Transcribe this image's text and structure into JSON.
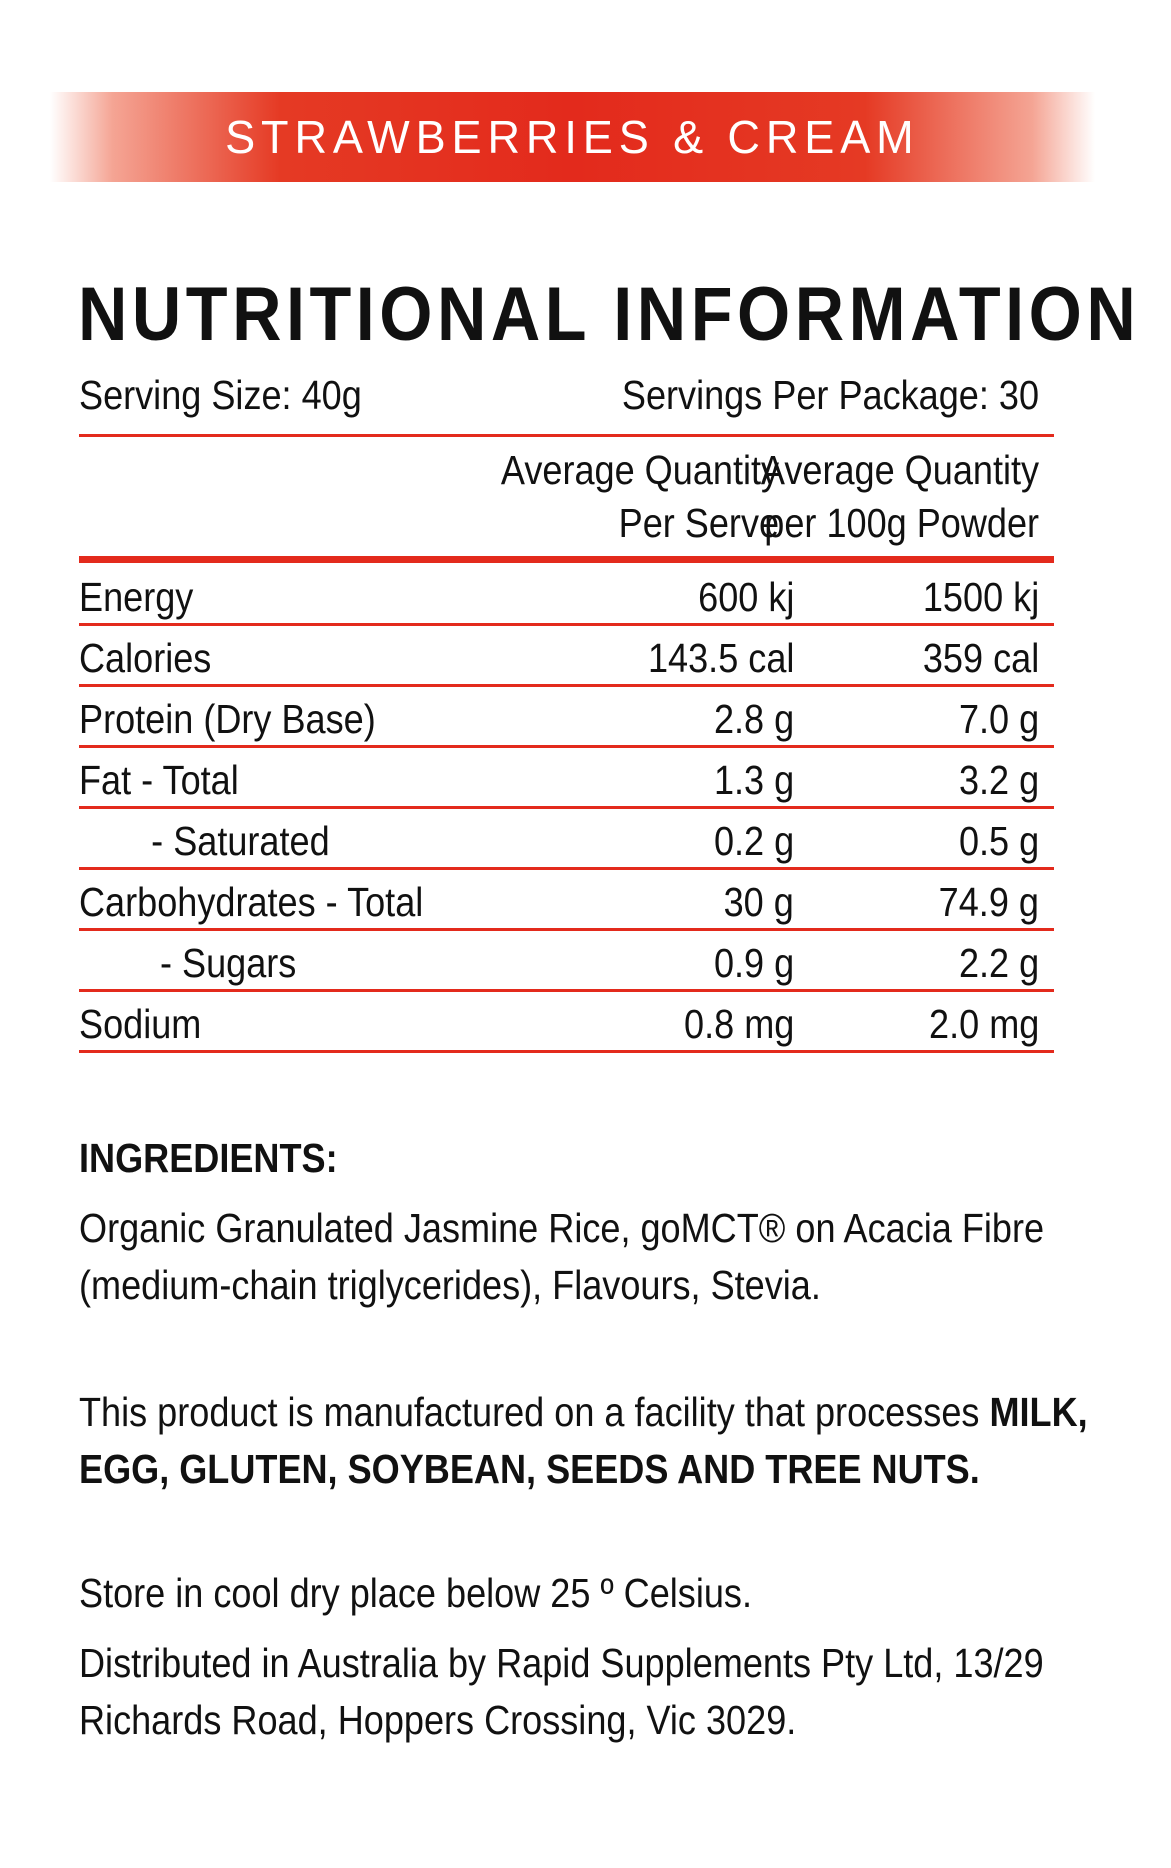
{
  "banner": {
    "flavour": "STRAWBERRIES & CREAM"
  },
  "panel": {
    "title": "NUTRITIONAL INFORMATION",
    "serving_size": "Serving Size: 40g",
    "servings_per_package": "Servings Per Package: 30",
    "columns": {
      "per_serve_line1": "Average Quantity",
      "per_serve_line2": "Per Serve",
      "per_100g_line1": "Average Quantity",
      "per_100g_line2": "per 100g Powder"
    },
    "rows": [
      {
        "label": "Energy",
        "per_serve": "600 kj",
        "per_100g": "1500 kj",
        "indent": 0
      },
      {
        "label": "Calories",
        "per_serve": "143.5 cal",
        "per_100g": "359 cal",
        "indent": 0
      },
      {
        "label": "Protein (Dry Base)",
        "per_serve": "2.8 g",
        "per_100g": "7.0 g",
        "indent": 0
      },
      {
        "label": "Fat - Total",
        "per_serve": "1.3 g",
        "per_100g": "3.2 g",
        "indent": 0
      },
      {
        "label": "- Saturated",
        "per_serve": "0.2 g",
        "per_100g": "0.5 g",
        "indent": 1
      },
      {
        "label": "Carbohydrates - Total",
        "per_serve": "30 g",
        "per_100g": "74.9 g",
        "indent": 0
      },
      {
        "label": "- Sugars",
        "per_serve": "0.9 g",
        "per_100g": "2.2 g",
        "indent": 2
      },
      {
        "label": "Sodium",
        "per_serve": "0.8 mg",
        "per_100g": "2.0 mg",
        "indent": 0
      }
    ]
  },
  "ingredients": {
    "heading": "INGREDIENTS:",
    "text": "Organic Granulated Jasmine Rice, goMCT® on Acacia Fibre (medium-chain triglycerides), Flavours, Stevia."
  },
  "allergen": {
    "prefix": "This product is manufactured on a facility that processes ",
    "allergens": "MILK, EGG, GLUTEN, SOYBEAN, SEEDS AND TREE NUTS",
    "suffix": "."
  },
  "storage": "Store in cool dry place below 25 º Celsius.",
  "distributor": "Distributed in Australia by Rapid Supplements Pty Ltd, 13/29 Richards Road, Hoppers Crossing, Vic 3029.",
  "colors": {
    "accent_red": "#e32a1c",
    "text": "#111111",
    "banner_text": "#ffffff"
  }
}
